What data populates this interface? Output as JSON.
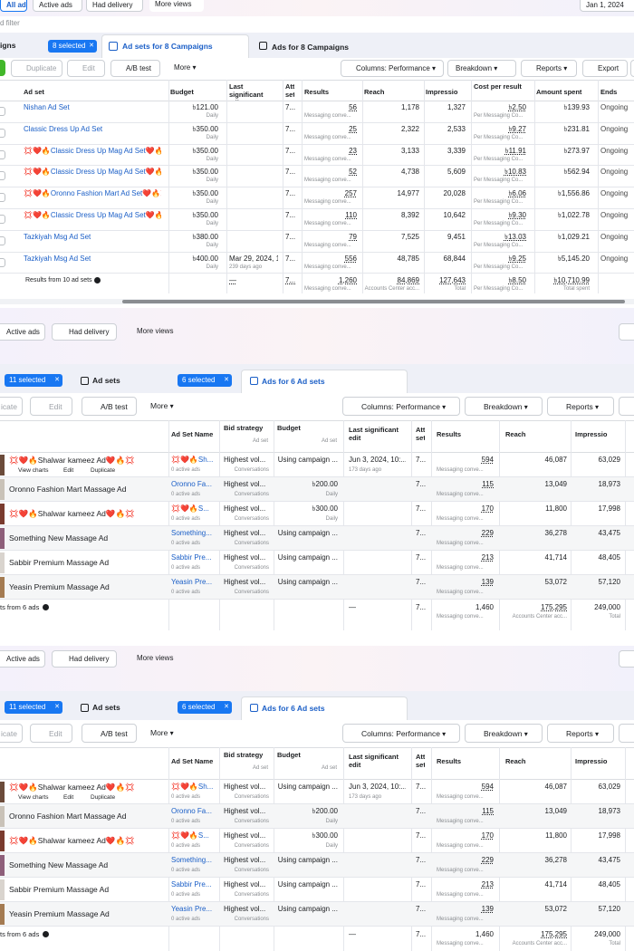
{
  "panel1": {
    "views": [
      "All ads",
      "Active ads",
      "Had delivery",
      "More views"
    ],
    "date": "Jan 1, 2024",
    "filter": "d filter",
    "tabs": {
      "campaigns": "igns",
      "selected": "8 selected",
      "adsets": "Ad sets for 8 Campaigns",
      "ads": "Ads for 8 Campaigns"
    },
    "toolbar": {
      "duplicate": "Duplicate",
      "edit": "Edit",
      "abtest": "A/B test",
      "more": "More",
      "columns": "Columns: Performance",
      "breakdown": "Breakdown",
      "reports": "Reports",
      "export": "Export"
    },
    "columns": {
      "name": "Ad set",
      "budget": "Budget",
      "edit": "Last significant edit",
      "att": "Att set",
      "results": "Results",
      "reach": "Reach",
      "impressions": "Impressio",
      "cost": "Cost per result",
      "spent": "Amount spent",
      "ends": "Ends"
    },
    "rows": [
      {
        "name": "Nishan Ad Set",
        "budget": "৳121.00",
        "budget_note": "Daily",
        "att": "7...",
        "results": "56",
        "results_note": "Messaging conve...",
        "reach": "1,178",
        "impressions": "1,327",
        "cost": "৳2.50",
        "cost_note": "Per Messaging Co...",
        "spent": "৳139.93",
        "ends": "Ongoing"
      },
      {
        "name": "Classic Dress Up Ad Set",
        "budget": "৳350.00",
        "budget_note": "Daily",
        "att": "7...",
        "results": "25",
        "results_note": "Messaging conve...",
        "reach": "2,322",
        "impressions": "2,533",
        "cost": "৳9.27",
        "cost_note": "Per Messaging Co...",
        "spent": "৳231.81",
        "ends": "Ongoing"
      },
      {
        "name": "💢❤️🔥Classic Dress Up Mag Ad Set❤️🔥💢2",
        "budget": "৳350.00",
        "budget_note": "Daily",
        "att": "7...",
        "results": "23",
        "results_note": "Messaging conve...",
        "reach": "3,133",
        "impressions": "3,339",
        "cost": "৳11.91",
        "cost_note": "Per Messaging Co...",
        "spent": "৳273.97",
        "ends": "Ongoing"
      },
      {
        "name": "💢❤️🔥Classic Dress Up Mag Ad Set❤️🔥💢",
        "budget": "৳350.00",
        "budget_note": "Daily",
        "att": "7...",
        "results": "52",
        "results_note": "Messaging conve...",
        "reach": "4,738",
        "impressions": "5,609",
        "cost": "৳10.83",
        "cost_note": "Per Messaging Co...",
        "spent": "৳562.94",
        "ends": "Ongoing"
      },
      {
        "name": "💢❤️🔥Oronno Fashion Mart Ad Set❤️🔥💢",
        "budget": "৳350.00",
        "budget_note": "Daily",
        "att": "7...",
        "results": "257",
        "results_note": "Messaging conve...",
        "reach": "14,977",
        "impressions": "20,028",
        "cost": "৳6.06",
        "cost_note": "Per Messaging Co...",
        "spent": "৳1,556.86",
        "ends": "Ongoing"
      },
      {
        "name": "💢❤️🔥Classic Dress Up Mag Ad Set❤️🔥💢",
        "budget": "৳350.00",
        "budget_note": "Daily",
        "att": "7...",
        "results": "110",
        "results_note": "Messaging conve...",
        "reach": "8,392",
        "impressions": "10,642",
        "cost": "৳9.30",
        "cost_note": "Per Messaging Co...",
        "spent": "৳1,022.78",
        "ends": "Ongoing"
      },
      {
        "name": "Tazkiyah Msg Ad Set",
        "budget": "৳380.00",
        "budget_note": "Daily",
        "att": "7...",
        "results": "79",
        "results_note": "Messaging conve...",
        "reach": "7,525",
        "impressions": "9,451",
        "cost": "৳13.03",
        "cost_note": "Per Messaging Co...",
        "spent": "৳1,029.21",
        "ends": "Ongoing"
      },
      {
        "name": "Tazkiyah Msg Ad Set",
        "budget": "৳400.00",
        "budget_note": "Daily",
        "edit": "Mar 29, 2024, 1...",
        "edit_note": "239 days ago",
        "att": "7...",
        "results": "556",
        "results_note": "Messaging conve...",
        "reach": "48,785",
        "impressions": "68,844",
        "cost": "৳9.25",
        "cost_note": "Per Messaging Co...",
        "spent": "৳5,145.20",
        "ends": "Ongoing"
      }
    ],
    "footer": {
      "name": "Results from 10 ad sets",
      "edit": "—",
      "att": "7...",
      "results": "1,260",
      "results_note": "Messaging conve...",
      "reach": "84,869",
      "reach_note": "Accounts Center acc...",
      "impressions": "127,643",
      "impressions_note": "Total",
      "cost": "৳8.50",
      "cost_note": "Per Messaging Co...",
      "spent": "৳10,710.99",
      "spent_note": "Total spent"
    }
  },
  "panels": [
    {
      "views": [
        "Active ads",
        "Had delivery",
        "More views"
      ],
      "tabs": {
        "campaigns_selected": "11 selected",
        "adsets": "Ad sets",
        "selected": "6 selected",
        "ads": "Ads for 6 Ad sets"
      },
      "toolbar": {
        "duplicate": "icate",
        "edit": "Edit",
        "abtest": "A/B test",
        "more": "More",
        "columns": "Columns: Performance",
        "breakdown": "Breakdown",
        "reports": "Reports"
      },
      "columns": {
        "adset": "Ad Set Name",
        "bid": "Bid strategy",
        "bid_note": "Ad set",
        "budget": "Budget",
        "budget_note": "Ad set",
        "edit": "Last significant edit",
        "att": "Att set",
        "results": "Results",
        "reach": "Reach",
        "impressions": "Impressio"
      },
      "rows": [
        {
          "name": "💢❤️🔥Shalwar kameez Ad❤️🔥💢",
          "actions": [
            "View charts",
            "Edit",
            "Duplicate"
          ],
          "adset": "💢❤️🔥Sh...",
          "adset_note": "0 active ads",
          "bid": "Highest vol...",
          "bid_note": "Conversations",
          "budget": "Using campaign ...",
          "edit": "Jun 3, 2024, 10:...",
          "edit_note": "173 days ago",
          "att": "7...",
          "results": "594",
          "results_note": "Messaging conve...",
          "reach": "46,087",
          "impressions": "63,029"
        },
        {
          "name": "Oronno Fashion Mart Massage Ad",
          "adset": "Oronno Fa...",
          "adset_note": "0 active ads",
          "bid": "Highest vol...",
          "bid_note": "Conversations",
          "budget": "৳200.00",
          "budget_note": "Daily",
          "att": "7...",
          "results": "115",
          "results_note": "Messaging conve...",
          "reach": "13,049",
          "impressions": "18,973"
        },
        {
          "name": "💢❤️🔥Shalwar kameez Ad❤️🔥💢",
          "adset": "💢❤️🔥S...",
          "adset_note": "0 active ads",
          "bid": "Highest vol...",
          "bid_note": "Conversations",
          "budget": "৳300.00",
          "budget_note": "Daily",
          "att": "7...",
          "results": "170",
          "results_note": "Messaging conve...",
          "reach": "11,800",
          "impressions": "17,998"
        },
        {
          "name": "Something New Massage Ad",
          "adset": "Something...",
          "adset_note": "0 active ads",
          "bid": "Highest vol...",
          "bid_note": "Conversations",
          "budget": "Using campaign ...",
          "att": "7...",
          "results": "229",
          "results_note": "Messaging conve...",
          "reach": "36,278",
          "impressions": "43,475"
        },
        {
          "name": "Sabbir Premium Massage Ad",
          "adset": "Sabbir Pre...",
          "adset_note": "0 active ads",
          "bid": "Highest vol...",
          "bid_note": "Conversations",
          "budget": "Using campaign ...",
          "att": "7...",
          "results": "213",
          "results_note": "Messaging conve...",
          "reach": "41,714",
          "impressions": "48,405"
        },
        {
          "name": "Yeasin Premium Massage Ad",
          "adset": "Yeasin Pre...",
          "adset_note": "0 active ads",
          "bid": "Highest vol...",
          "bid_note": "Conversations",
          "budget": "Using campaign ...",
          "att": "7...",
          "results": "139",
          "results_note": "Messaging conve...",
          "reach": "53,072",
          "impressions": "57,120"
        }
      ],
      "footer": {
        "name": "ts from 6 ads",
        "edit": "—",
        "att": "7...",
        "results": "1,460",
        "results_note": "Messaging conve...",
        "reach": "175,295",
        "reach_note": "Accounts Center acc...",
        "impressions": "249,000",
        "impressions_note": "Total"
      }
    },
    {
      "views": [
        "Active ads",
        "Had delivery",
        "More views"
      ],
      "tabs": {
        "campaigns_selected": "11 selected",
        "adsets": "Ad sets",
        "selected": "6 selected",
        "ads": "Ads for 6 Ad sets"
      },
      "toolbar": {
        "duplicate": "icate",
        "edit": "Edit",
        "abtest": "A/B test",
        "more": "More",
        "columns": "Columns: Performance",
        "breakdown": "Breakdown",
        "reports": "Reports"
      },
      "columns": {
        "adset": "Ad Set Name",
        "bid": "Bid strategy",
        "bid_note": "Ad set",
        "budget": "Budget",
        "budget_note": "Ad set",
        "edit": "Last significant edit",
        "att": "Att set",
        "results": "Results",
        "reach": "Reach",
        "impressions": "Impressio"
      },
      "rows": [
        {
          "name": "💢❤️🔥Shalwar kameez Ad❤️🔥💢",
          "actions": [
            "View charts",
            "Edit",
            "Duplicate"
          ],
          "adset": "💢❤️🔥Sh...",
          "adset_note": "0 active ads",
          "bid": "Highest vol...",
          "bid_note": "Conversations",
          "budget": "Using campaign ...",
          "edit": "Jun 3, 2024, 10:...",
          "edit_note": "173 days ago",
          "att": "7...",
          "results": "594",
          "results_note": "Messaging conve...",
          "reach": "46,087",
          "impressions": "63,029"
        },
        {
          "name": "Oronno Fashion Mart Massage Ad",
          "adset": "Oronno Fa...",
          "adset_note": "0 active ads",
          "bid": "Highest vol...",
          "bid_note": "Conversations",
          "budget": "৳200.00",
          "budget_note": "Daily",
          "att": "7...",
          "results": "115",
          "results_note": "Messaging conve...",
          "reach": "13,049",
          "impressions": "18,973"
        },
        {
          "name": "💢❤️🔥Shalwar kameez Ad❤️🔥💢",
          "adset": "💢❤️🔥S...",
          "adset_note": "0 active ads",
          "bid": "Highest vol...",
          "bid_note": "Conversations",
          "budget": "৳300.00",
          "budget_note": "Daily",
          "att": "7...",
          "results": "170",
          "results_note": "Messaging conve...",
          "reach": "11,800",
          "impressions": "17,998"
        },
        {
          "name": "Something New Massage Ad",
          "adset": "Something...",
          "adset_note": "0 active ads",
          "bid": "Highest vol...",
          "bid_note": "Conversations",
          "budget": "Using campaign ...",
          "att": "7...",
          "results": "229",
          "results_note": "Messaging conve...",
          "reach": "36,278",
          "impressions": "43,475"
        },
        {
          "name": "Sabbir Premium Massage Ad",
          "adset": "Sabbir Pre...",
          "adset_note": "0 active ads",
          "bid": "Highest vol...",
          "bid_note": "Conversations",
          "budget": "Using campaign ...",
          "att": "7...",
          "results": "213",
          "results_note": "Messaging conve...",
          "reach": "41,714",
          "impressions": "48,405"
        },
        {
          "name": "Yeasin Premium Massage Ad",
          "adset": "Yeasin Pre...",
          "adset_note": "0 active ads",
          "bid": "Highest vol...",
          "bid_note": "Conversations",
          "budget": "Using campaign ...",
          "att": "7...",
          "results": "139",
          "results_note": "Messaging conve...",
          "reach": "53,072",
          "impressions": "57,120"
        }
      ],
      "footer": {
        "name": "ts from 6 ads",
        "edit": "—",
        "att": "7...",
        "results": "1,460",
        "results_note": "Messaging conve...",
        "reach": "175,295",
        "reach_note": "Accounts Center acc...",
        "impressions": "249,000",
        "impressions_note": "Total"
      }
    }
  ]
}
